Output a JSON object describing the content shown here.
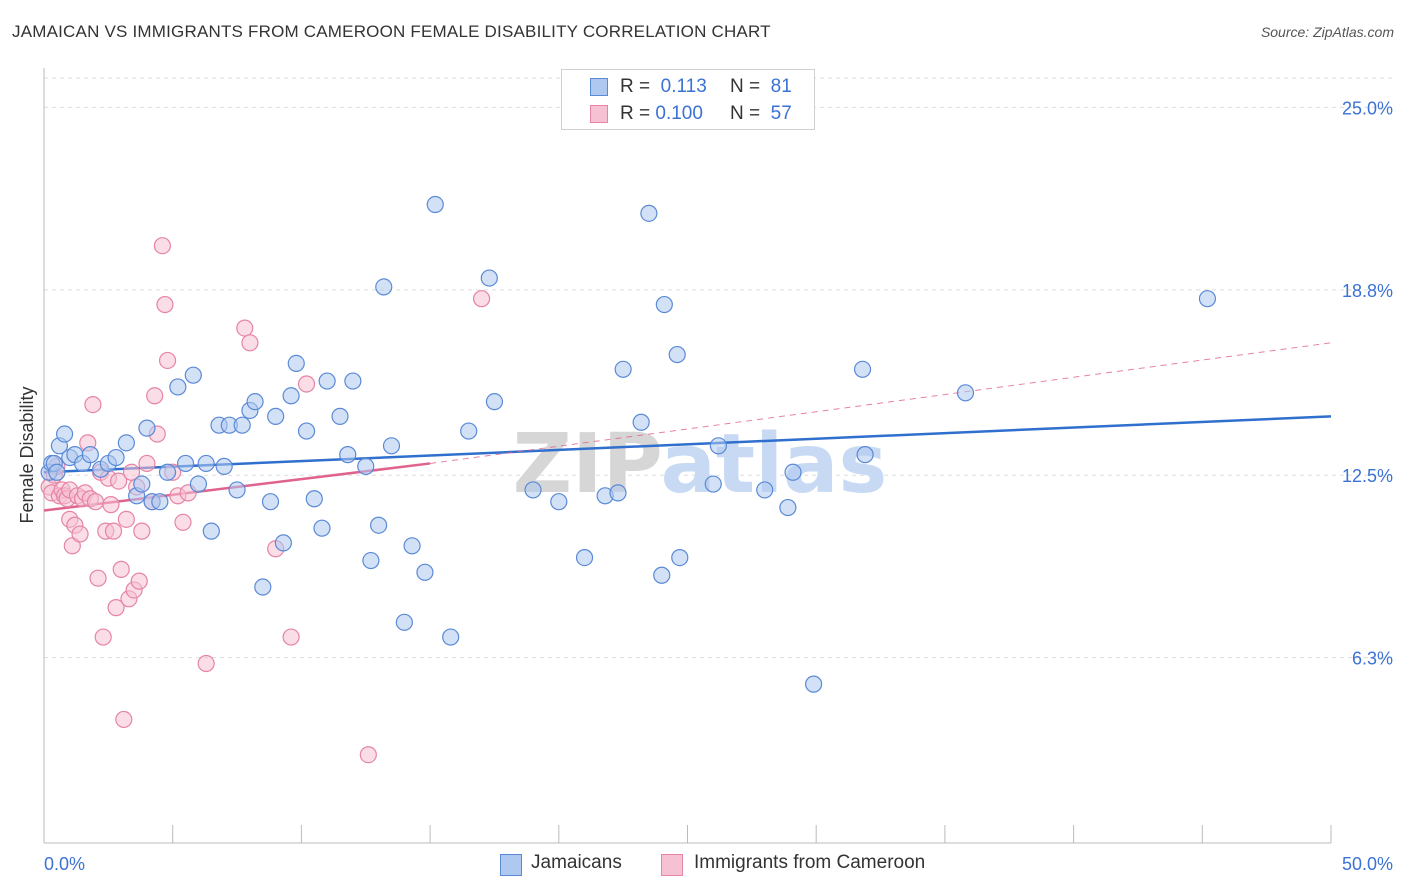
{
  "title": "JAMAICAN VS IMMIGRANTS FROM CAMEROON FEMALE DISABILITY CORRELATION CHART",
  "source": "Source: ZipAtlas.com",
  "watermark": "ZIPatlas",
  "colors": {
    "blue_fill": "#aec8f0",
    "blue_stroke": "#5a8ad6",
    "blue_line": "#2f6fce",
    "pink_fill": "#f6c1d2",
    "pink_stroke": "#e584a6",
    "pink_line": "#e0628e",
    "grid": "#dddddd",
    "tick_label": "#3b72d4"
  },
  "legend_top": {
    "rows": [
      {
        "series": "Jamaicans",
        "r_label": "R =",
        "r_value": "0.113",
        "n_label": "N =",
        "n_value": "81"
      },
      {
        "series": "Immigrants from Cameroon",
        "r_label": "R =",
        "r_value": "0.100",
        "n_label": "N =",
        "n_value": "57"
      }
    ]
  },
  "legend_bottom": [
    "Jamaicans",
    "Immigrants from Cameroon"
  ],
  "chart_data": {
    "type": "scatter",
    "title": "JAMAICAN VS IMMIGRANTS FROM CAMEROON FEMALE DISABILITY CORRELATION CHART",
    "xlabel": "",
    "ylabel": "Female Disability",
    "xlim": [
      0,
      50
    ],
    "ylim": [
      0,
      26
    ],
    "x_tick_labels": [
      {
        "value": 0,
        "label": "0.0%"
      },
      {
        "value": 50,
        "label": "50.0%"
      }
    ],
    "y_tick_labels": [
      {
        "value": 6.3,
        "label": "6.3%"
      },
      {
        "value": 12.5,
        "label": "12.5%"
      },
      {
        "value": 18.8,
        "label": "18.8%"
      },
      {
        "value": 25.0,
        "label": "25.0%"
      }
    ],
    "grid": true,
    "series": [
      {
        "name": "Jamaicans",
        "R": 0.113,
        "N": 81,
        "trend": {
          "x": [
            0,
            50
          ],
          "y": [
            12.6,
            14.5
          ]
        },
        "points": [
          [
            0.2,
            12.6
          ],
          [
            0.3,
            12.9
          ],
          [
            0.4,
            12.9
          ],
          [
            0.5,
            12.6
          ],
          [
            0.6,
            13.5
          ],
          [
            0.8,
            13.9
          ],
          [
            1.0,
            13.1
          ],
          [
            1.2,
            13.2
          ],
          [
            1.5,
            12.9
          ],
          [
            1.8,
            13.2
          ],
          [
            2.2,
            12.7
          ],
          [
            2.5,
            12.9
          ],
          [
            2.8,
            13.1
          ],
          [
            3.2,
            13.6
          ],
          [
            3.6,
            11.8
          ],
          [
            3.8,
            12.2
          ],
          [
            4.0,
            14.1
          ],
          [
            4.2,
            11.6
          ],
          [
            4.5,
            11.6
          ],
          [
            4.8,
            12.6
          ],
          [
            5.2,
            15.5
          ],
          [
            5.5,
            12.9
          ],
          [
            5.8,
            15.9
          ],
          [
            6.0,
            12.2
          ],
          [
            6.3,
            12.9
          ],
          [
            6.5,
            10.6
          ],
          [
            6.8,
            14.2
          ],
          [
            7.0,
            12.8
          ],
          [
            7.2,
            14.2
          ],
          [
            7.5,
            12.0
          ],
          [
            7.7,
            14.2
          ],
          [
            8.0,
            14.7
          ],
          [
            8.2,
            15.0
          ],
          [
            8.5,
            8.7
          ],
          [
            8.8,
            11.6
          ],
          [
            9.0,
            14.5
          ],
          [
            9.3,
            10.2
          ],
          [
            9.6,
            15.2
          ],
          [
            9.8,
            16.3
          ],
          [
            10.2,
            14.0
          ],
          [
            10.5,
            11.7
          ],
          [
            10.8,
            10.7
          ],
          [
            11.0,
            15.7
          ],
          [
            11.5,
            14.5
          ],
          [
            11.8,
            13.2
          ],
          [
            12.0,
            15.7
          ],
          [
            12.5,
            12.8
          ],
          [
            12.7,
            9.6
          ],
          [
            13.0,
            10.8
          ],
          [
            13.2,
            18.9
          ],
          [
            13.5,
            13.5
          ],
          [
            14.0,
            7.5
          ],
          [
            14.3,
            10.1
          ],
          [
            14.8,
            9.2
          ],
          [
            15.2,
            21.7
          ],
          [
            15.8,
            7.0
          ],
          [
            16.5,
            14.0
          ],
          [
            17.3,
            19.2
          ],
          [
            17.5,
            15.0
          ],
          [
            19.0,
            12.0
          ],
          [
            20.0,
            11.6
          ],
          [
            21.0,
            9.7
          ],
          [
            21.8,
            11.8
          ],
          [
            22.3,
            11.9
          ],
          [
            22.5,
            16.1
          ],
          [
            23.2,
            14.3
          ],
          [
            23.5,
            21.4
          ],
          [
            24.0,
            9.1
          ],
          [
            24.1,
            18.3
          ],
          [
            24.6,
            16.6
          ],
          [
            24.7,
            9.7
          ],
          [
            26.0,
            12.2
          ],
          [
            26.2,
            13.5
          ],
          [
            28.0,
            12.0
          ],
          [
            28.9,
            11.4
          ],
          [
            29.1,
            12.6
          ],
          [
            29.9,
            5.4
          ],
          [
            31.8,
            16.1
          ],
          [
            31.9,
            13.2
          ],
          [
            35.8,
            15.3
          ],
          [
            45.2,
            18.5
          ]
        ]
      },
      {
        "name": "Immigrants from Cameroon",
        "R": 0.1,
        "N": 57,
        "trend": {
          "x": [
            0,
            15
          ],
          "y": [
            11.3,
            12.9
          ]
        },
        "trend_extension": {
          "x": [
            15,
            50
          ],
          "y": [
            12.9,
            17.0
          ]
        },
        "points": [
          [
            0.2,
            12.1
          ],
          [
            0.3,
            11.9
          ],
          [
            0.4,
            12.5
          ],
          [
            0.5,
            12.8
          ],
          [
            0.6,
            11.8
          ],
          [
            0.7,
            12.0
          ],
          [
            0.8,
            11.8
          ],
          [
            0.9,
            11.7
          ],
          [
            1.0,
            11.0
          ],
          [
            1.0,
            12.0
          ],
          [
            1.1,
            10.1
          ],
          [
            1.2,
            10.8
          ],
          [
            1.3,
            11.8
          ],
          [
            1.4,
            10.5
          ],
          [
            1.5,
            11.7
          ],
          [
            1.6,
            11.9
          ],
          [
            1.7,
            13.6
          ],
          [
            1.8,
            11.7
          ],
          [
            1.9,
            14.9
          ],
          [
            2.0,
            11.6
          ],
          [
            2.1,
            9.0
          ],
          [
            2.2,
            12.6
          ],
          [
            2.3,
            7.0
          ],
          [
            2.4,
            10.6
          ],
          [
            2.5,
            12.4
          ],
          [
            2.6,
            11.5
          ],
          [
            2.7,
            10.6
          ],
          [
            2.8,
            8.0
          ],
          [
            2.9,
            12.3
          ],
          [
            3.0,
            9.3
          ],
          [
            3.1,
            4.2
          ],
          [
            3.2,
            11.0
          ],
          [
            3.3,
            8.3
          ],
          [
            3.4,
            12.6
          ],
          [
            3.5,
            8.6
          ],
          [
            3.6,
            12.1
          ],
          [
            3.7,
            8.9
          ],
          [
            3.8,
            10.6
          ],
          [
            4.0,
            12.9
          ],
          [
            4.2,
            11.6
          ],
          [
            4.3,
            15.2
          ],
          [
            4.4,
            13.9
          ],
          [
            4.6,
            20.3
          ],
          [
            4.7,
            18.3
          ],
          [
            4.8,
            16.4
          ],
          [
            5.0,
            12.6
          ],
          [
            5.2,
            11.8
          ],
          [
            5.4,
            10.9
          ],
          [
            5.6,
            11.9
          ],
          [
            6.3,
            6.1
          ],
          [
            7.8,
            17.5
          ],
          [
            8.0,
            17.0
          ],
          [
            9.0,
            10.0
          ],
          [
            9.6,
            7.0
          ],
          [
            10.2,
            15.6
          ],
          [
            12.6,
            3.0
          ],
          [
            17.0,
            18.5
          ]
        ]
      }
    ]
  }
}
